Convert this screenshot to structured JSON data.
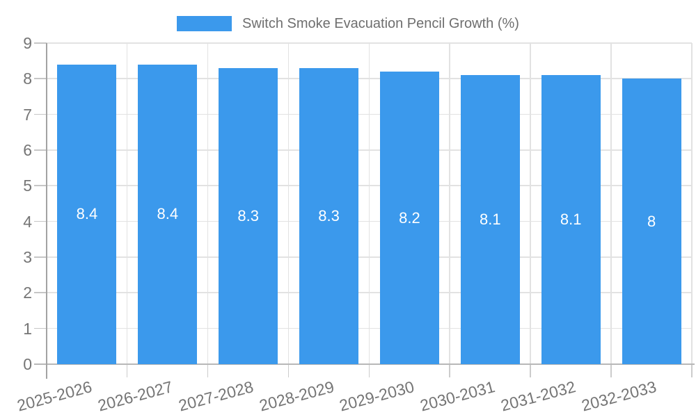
{
  "chart_data": {
    "type": "bar",
    "categories": [
      "2025-2026",
      "2026-2027",
      "2027-2028",
      "2028-2029",
      "2029-2030",
      "2030-2031",
      "2031-2032",
      "2032-2033"
    ],
    "series": [
      {
        "name": "Switch Smoke Evacuation Pencil Growth (%)",
        "values": [
          8.4,
          8.4,
          8.3,
          8.3,
          8.2,
          8.1,
          8.1,
          8
        ]
      }
    ],
    "value_labels": [
      "8.4",
      "8.4",
      "8.3",
      "8.3",
      "8.2",
      "8.1",
      "8.1",
      "8"
    ],
    "xlabel": "",
    "ylabel": "",
    "ylim": [
      0,
      9
    ],
    "yticks": [
      0,
      1,
      2,
      3,
      4,
      5,
      6,
      7,
      8,
      9
    ],
    "grid": true,
    "legend_position": "top",
    "colors": {
      "bar": "#3B99EC",
      "bar_label": "#FFFFFF",
      "tick_label": "#757575",
      "legend_text": "#6E6E6E"
    }
  }
}
